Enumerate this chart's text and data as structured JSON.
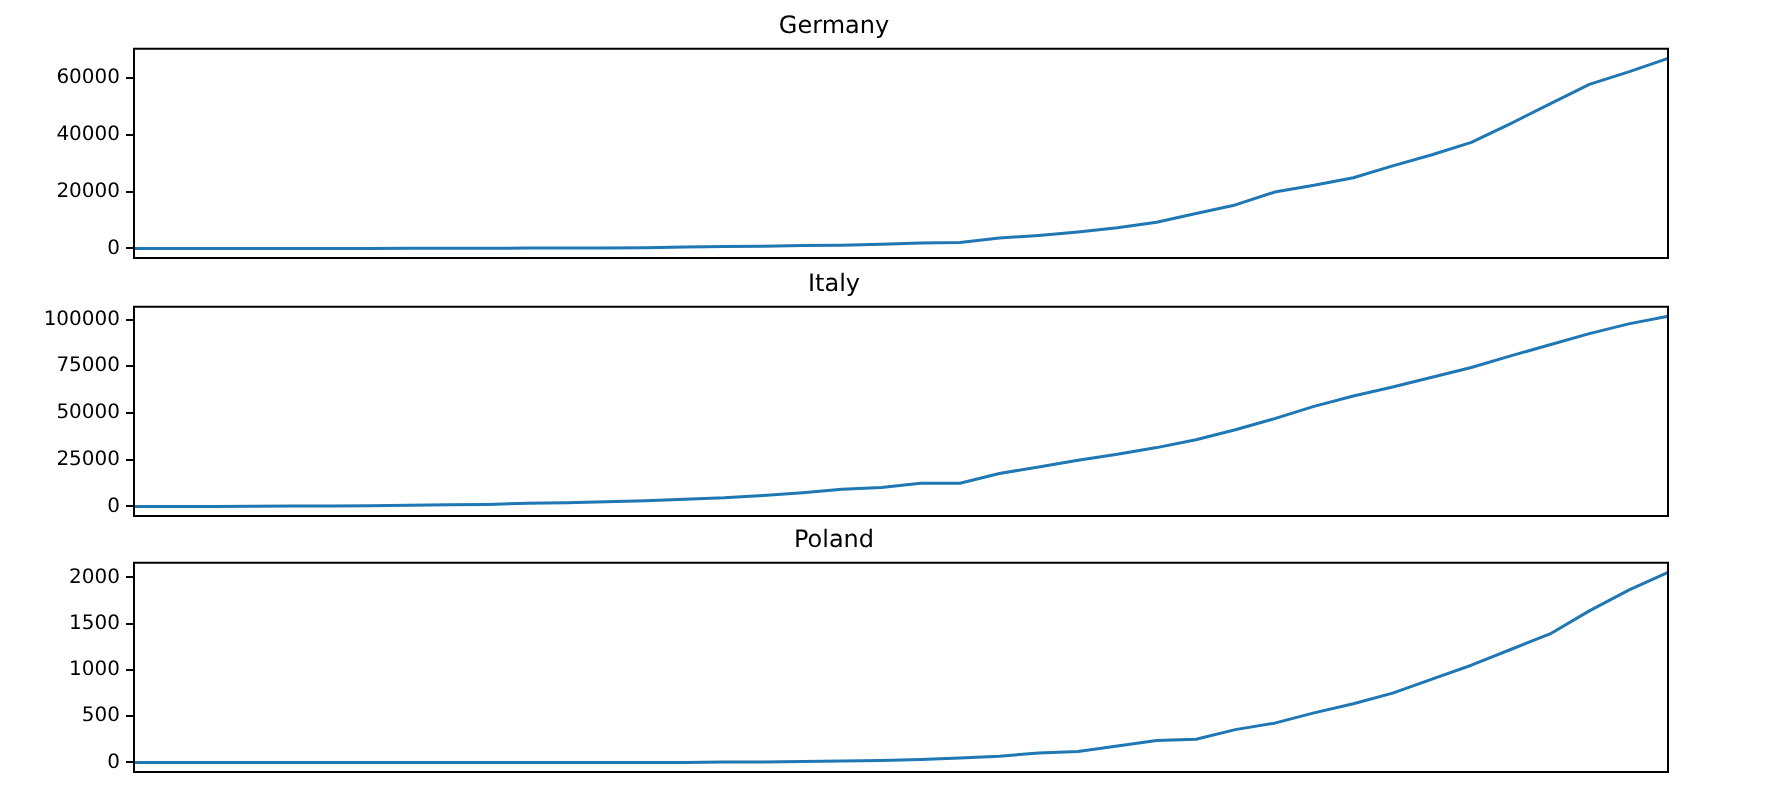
{
  "chart_data": [
    {
      "type": "line",
      "title": "Germany",
      "color": "#1f77b4",
      "ylim": [
        -3344,
        70229
      ],
      "yticks": [
        0,
        20000,
        40000,
        60000
      ],
      "categories": [
        null,
        null,
        null,
        null,
        null,
        null,
        null,
        null,
        null,
        null,
        null,
        null,
        null,
        null,
        null,
        null,
        null,
        null,
        null,
        null,
        null,
        null,
        null,
        null,
        null,
        null,
        null,
        null,
        null,
        null,
        null,
        null,
        null,
        null,
        null,
        null,
        null,
        null,
        null,
        null
      ],
      "values": [
        16,
        16,
        16,
        16,
        16,
        17,
        27,
        46,
        48,
        79,
        130,
        159,
        196,
        262,
        482,
        670,
        799,
        1040,
        1176,
        1457,
        1908,
        2078,
        3675,
        4585,
        5795,
        7272,
        9257,
        12327,
        15320,
        19848,
        22213,
        24873,
        29056,
        32986,
        37323,
        43938,
        50871,
        57695,
        62095,
        66885
      ]
    },
    {
      "type": "line",
      "title": "Italy",
      "color": "#1f77b4",
      "ylim": [
        -5087,
        106826
      ],
      "yticks": [
        0,
        25000,
        50000,
        75000,
        100000
      ],
      "categories": [
        null,
        null,
        null,
        null,
        null,
        null,
        null,
        null,
        null,
        null,
        null,
        null,
        null,
        null,
        null,
        null,
        null,
        null,
        null,
        null,
        null,
        null,
        null,
        null,
        null,
        null,
        null,
        null,
        null,
        null,
        null,
        null,
        null,
        null,
        null,
        null,
        null,
        null,
        null,
        null
      ],
      "values": [
        3,
        20,
        62,
        155,
        229,
        322,
        453,
        655,
        888,
        1128,
        1694,
        2036,
        2502,
        3089,
        3858,
        4636,
        5883,
        7375,
        9172,
        10149,
        12462,
        12462,
        17660,
        21157,
        24747,
        27980,
        31506,
        35713,
        41035,
        47021,
        53578,
        59138,
        63927,
        69176,
        74386,
        80589,
        86498,
        92472,
        97689,
        101739
      ]
    },
    {
      "type": "line",
      "title": "Poland",
      "color": "#1f77b4",
      "ylim": [
        -103,
        2158
      ],
      "yticks": [
        0,
        500,
        1000,
        1500,
        2000
      ],
      "categories": [
        null,
        null,
        null,
        null,
        null,
        null,
        null,
        null,
        null,
        null,
        null,
        null,
        null,
        null,
        null,
        null,
        null,
        null,
        null,
        null,
        null,
        null,
        null,
        null,
        null,
        null,
        null,
        null,
        null,
        null,
        null,
        null,
        null,
        null,
        null,
        null,
        null,
        null,
        null,
        null
      ],
      "values": [
        0,
        0,
        0,
        0,
        0,
        0,
        0,
        0,
        0,
        0,
        0,
        0,
        0,
        1,
        1,
        5,
        5,
        11,
        16,
        22,
        31,
        49,
        68,
        103,
        119,
        177,
        238,
        251,
        355,
        425,
        536,
        634,
        749,
        901,
        1051,
        1221,
        1389,
        1638,
        1862,
        2055
      ]
    }
  ]
}
